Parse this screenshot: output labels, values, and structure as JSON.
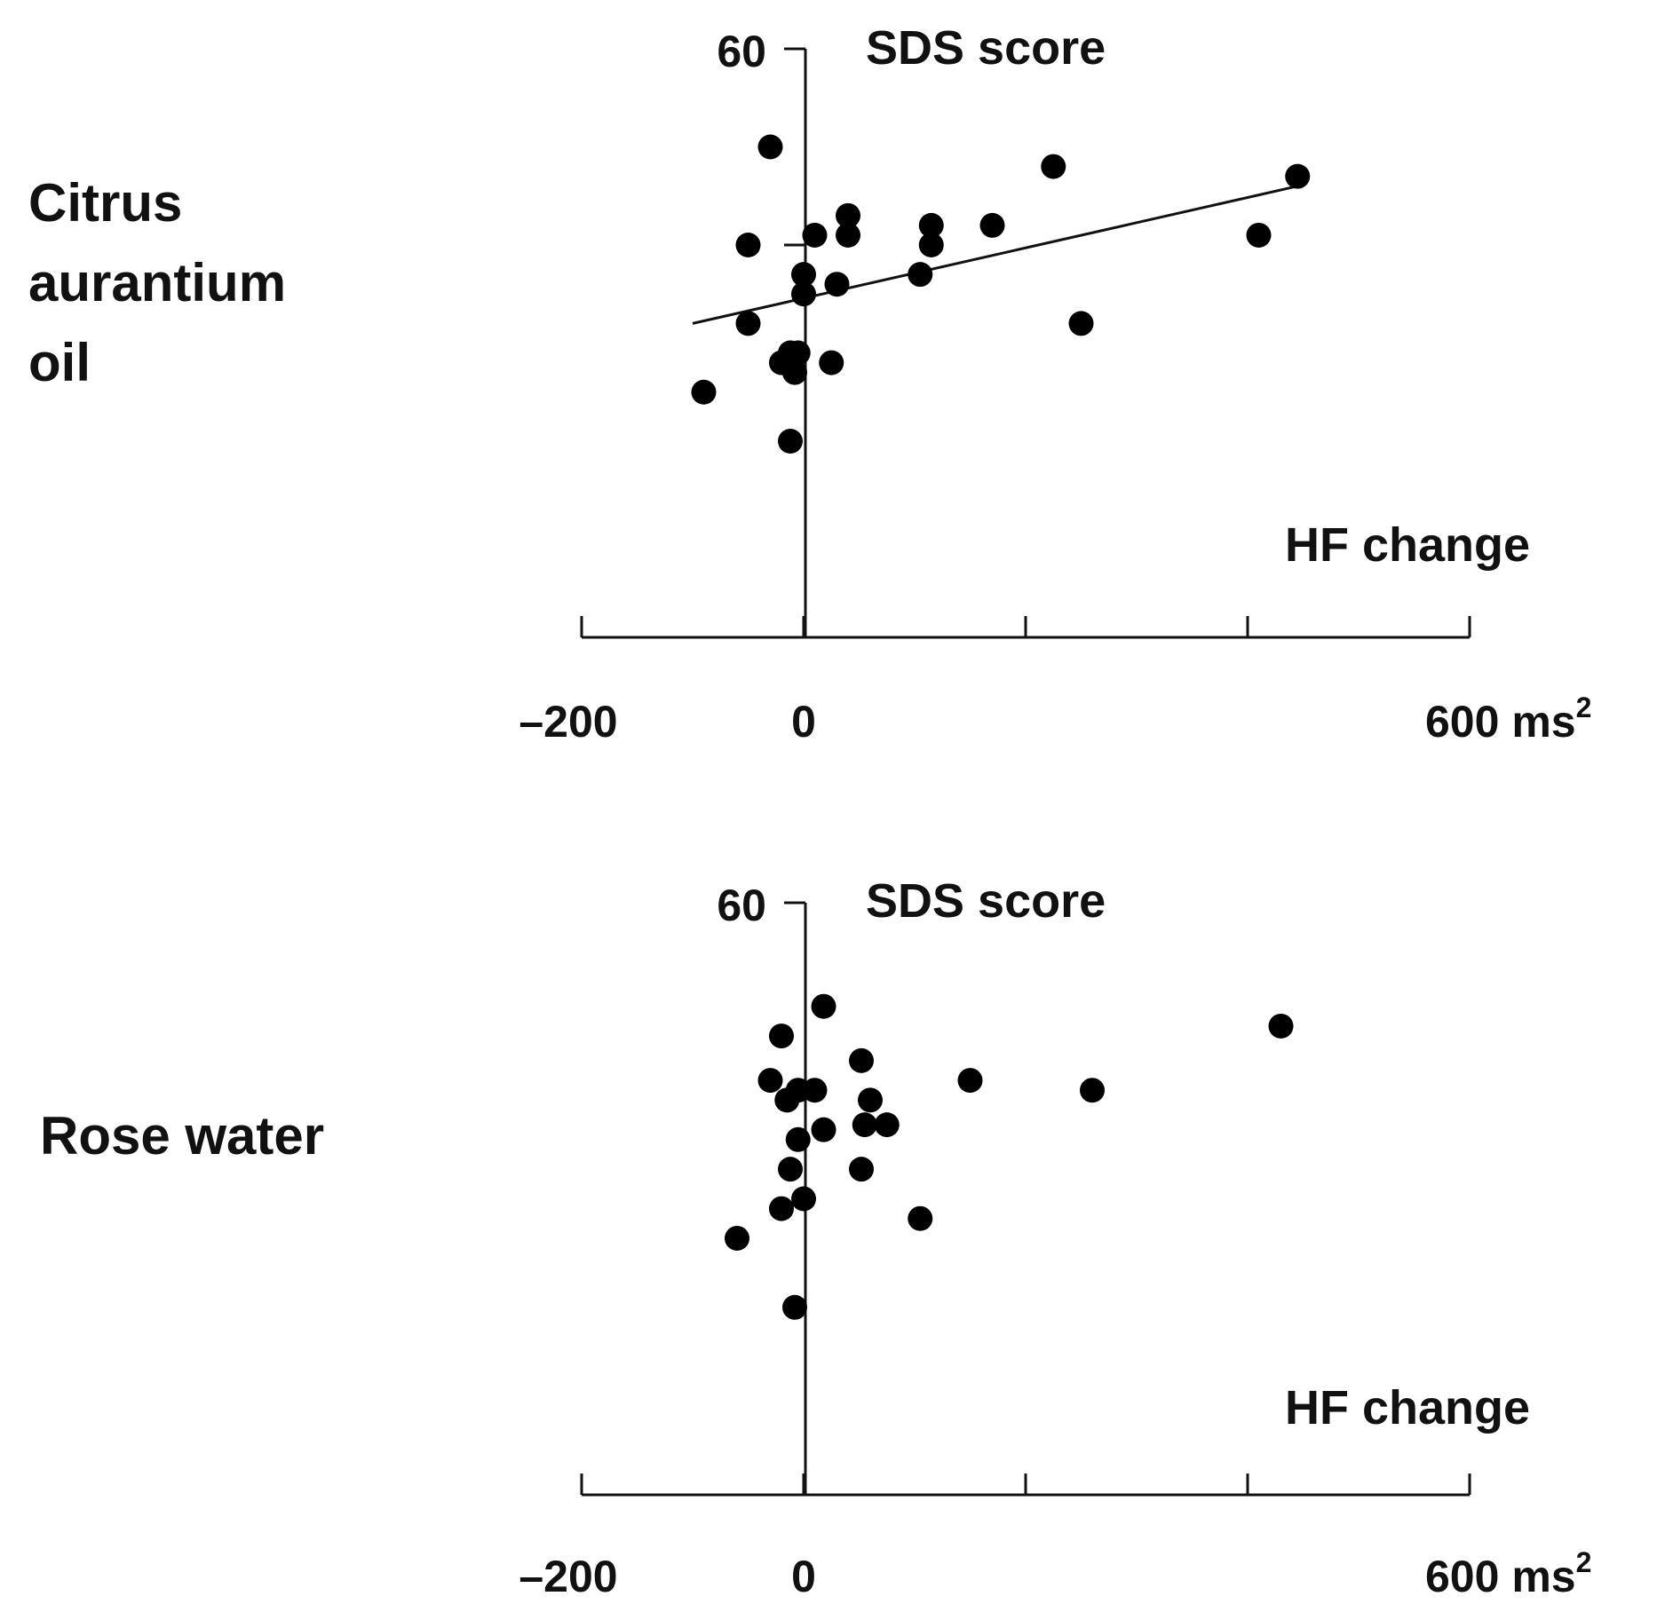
{
  "chart_data": [
    {
      "type": "scatter",
      "panel_label": "Citrus\naurantium\noil",
      "ylabel": "SDS score",
      "xlabel": "HF change",
      "x_tick_labels": [
        "–200",
        "0",
        "600 ms"
      ],
      "x_unit_superscript": "2",
      "y_tick_labels": [
        "60"
      ],
      "xlim": [
        -200,
        600
      ],
      "ylim": [
        0,
        60
      ],
      "x_ticks": [
        -200,
        0,
        200,
        400,
        600
      ],
      "y_ticks": [
        40,
        60
      ],
      "grid": false,
      "legend": "none",
      "marker_color": "#000000",
      "points": [
        {
          "x": -30,
          "y": 50
        },
        {
          "x": -90,
          "y": 25
        },
        {
          "x": -50,
          "y": 32
        },
        {
          "x": -50,
          "y": 40
        },
        {
          "x": -20,
          "y": 28
        },
        {
          "x": -12,
          "y": 29
        },
        {
          "x": -5,
          "y": 29
        },
        {
          "x": -8,
          "y": 27
        },
        {
          "x": -12,
          "y": 20
        },
        {
          "x": 0,
          "y": 37
        },
        {
          "x": 0,
          "y": 35
        },
        {
          "x": 10,
          "y": 41
        },
        {
          "x": 30,
          "y": 36
        },
        {
          "x": 25,
          "y": 28
        },
        {
          "x": 40,
          "y": 43
        },
        {
          "x": 40,
          "y": 41
        },
        {
          "x": 105,
          "y": 37
        },
        {
          "x": 115,
          "y": 40
        },
        {
          "x": 115,
          "y": 42
        },
        {
          "x": 170,
          "y": 42
        },
        {
          "x": 225,
          "y": 48
        },
        {
          "x": 250,
          "y": 32
        },
        {
          "x": 410,
          "y": 41
        },
        {
          "x": 445,
          "y": 47
        }
      ],
      "trendline": {
        "x": [
          -100,
          445
        ],
        "y": [
          32,
          46
        ]
      }
    },
    {
      "type": "scatter",
      "panel_label": "Rose water",
      "ylabel": "SDS score",
      "xlabel": "HF change",
      "x_tick_labels": [
        "–200",
        "0",
        "600 ms"
      ],
      "x_unit_superscript": "2",
      "y_tick_labels": [
        "60"
      ],
      "xlim": [
        -200,
        600
      ],
      "ylim": [
        0,
        60
      ],
      "x_ticks": [
        -200,
        0,
        200,
        400,
        600
      ],
      "y_ticks": [],
      "grid": false,
      "legend": "none",
      "marker_color": "#000000",
      "points": [
        {
          "x": 18,
          "y": 49.5
        },
        {
          "x": -20,
          "y": 46.5
        },
        {
          "x": -30,
          "y": 42
        },
        {
          "x": -15,
          "y": 40
        },
        {
          "x": -5,
          "y": 41
        },
        {
          "x": 10,
          "y": 41
        },
        {
          "x": 52,
          "y": 44
        },
        {
          "x": 60,
          "y": 40
        },
        {
          "x": 150,
          "y": 42
        },
        {
          "x": 260,
          "y": 41
        },
        {
          "x": 430,
          "y": 47.5
        },
        {
          "x": -5,
          "y": 36
        },
        {
          "x": 18,
          "y": 37
        },
        {
          "x": 55,
          "y": 37.5
        },
        {
          "x": 75,
          "y": 37.5
        },
        {
          "x": -12,
          "y": 33
        },
        {
          "x": 52,
          "y": 33
        },
        {
          "x": -20,
          "y": 29
        },
        {
          "x": 0,
          "y": 30
        },
        {
          "x": 105,
          "y": 28
        },
        {
          "x": -60,
          "y": 26
        },
        {
          "x": -8,
          "y": 19
        }
      ],
      "trendline": null
    }
  ]
}
